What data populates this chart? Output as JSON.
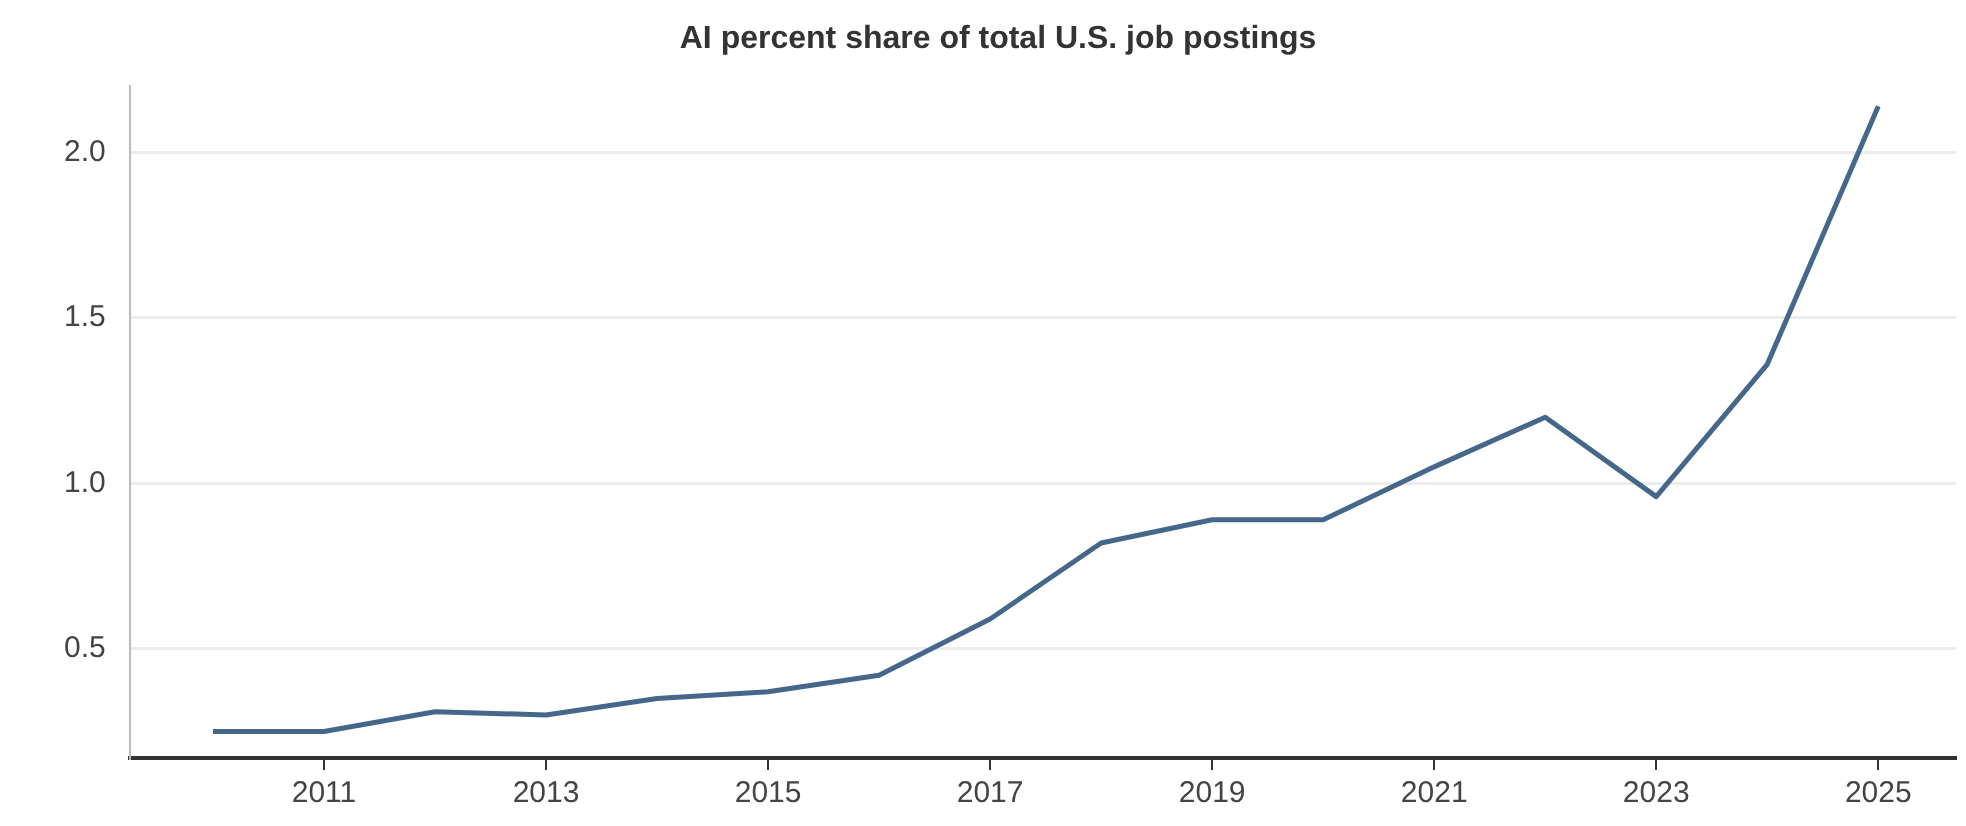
{
  "chart_data": {
    "type": "line",
    "title": "AI percent share of total U.S. job postings",
    "x": [
      2010,
      2011,
      2012,
      2013,
      2014,
      2015,
      2016,
      2017,
      2018,
      2019,
      2020,
      2021,
      2022,
      2023,
      2024,
      2025
    ],
    "series": [
      {
        "color": "#44678a",
        "values": [
          0.25,
          0.25,
          0.31,
          0.3,
          0.35,
          0.37,
          0.42,
          0.59,
          0.82,
          0.89,
          0.89,
          1.05,
          1.2,
          0.96,
          1.36,
          2.14
        ]
      }
    ],
    "xlim": [
      2009.25,
      2025.7
    ],
    "xticks": [
      2011,
      2013,
      2015,
      2017,
      2019,
      2021,
      2023,
      2025
    ],
    "ylim": [
      0.17,
      2.2
    ],
    "yticks": [
      {
        "value": 0.5,
        "label": "0.5"
      },
      {
        "value": 1.0,
        "label": "1.0"
      },
      {
        "value": 1.5,
        "label": "1.5"
      },
      {
        "value": 2.0,
        "label": "2.0"
      }
    ],
    "grid": "y",
    "legend": false,
    "marker": "none",
    "line_style": "solid"
  }
}
